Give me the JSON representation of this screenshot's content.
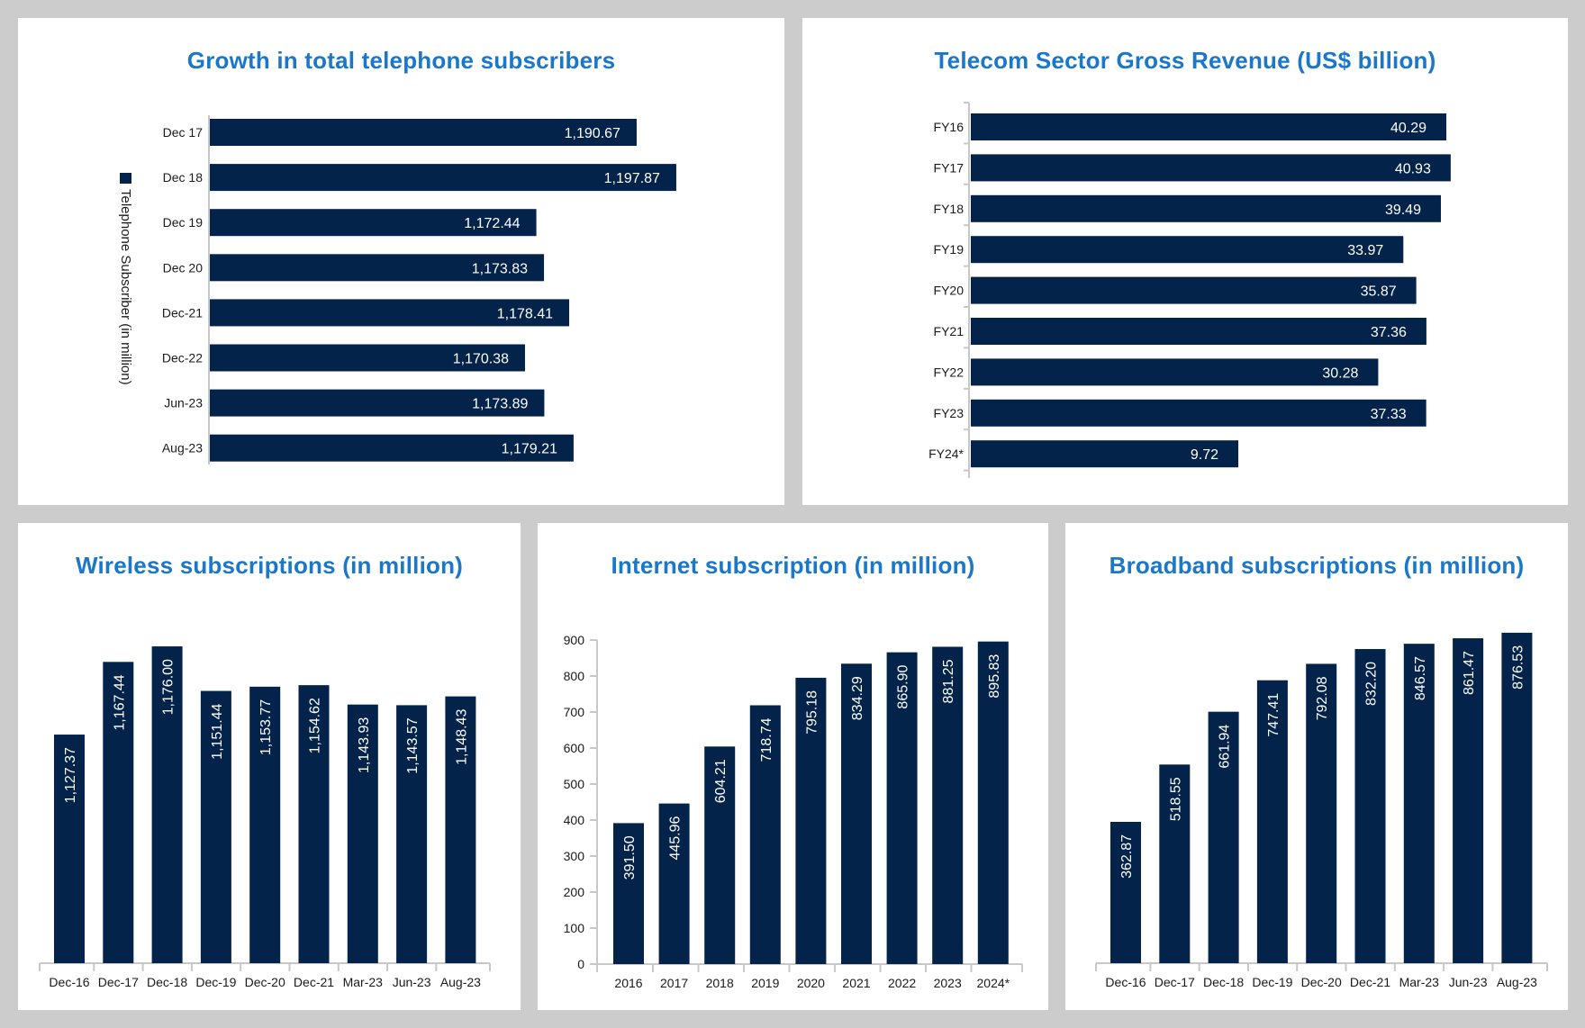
{
  "colors": {
    "bar": "#03234b",
    "title": "#1b77c9",
    "background": "#cccccc",
    "panel": "#ffffff",
    "axis": "#c8c8c8"
  },
  "chart_data": [
    {
      "id": "telephone",
      "type": "bar",
      "orientation": "horizontal",
      "title": "Growth in total telephone subscribers",
      "legend": {
        "label": "Telephone Subscriber (in million)",
        "placement": "left, rotated vertical"
      },
      "categories": [
        "Dec 17",
        "Dec 18",
        "Dec 19",
        "Dec 20",
        "Dec-21",
        "Dec-22",
        "Jun-23",
        "Aug-23"
      ],
      "values": [
        1190.67,
        1197.87,
        1172.44,
        1173.83,
        1178.41,
        1170.38,
        1173.89,
        1179.21
      ],
      "value_labels": [
        "1,190.67",
        "1,197.87",
        "1,172.44",
        "1,173.83",
        "1,178.41",
        "1,170.38",
        "1,173.89",
        "1,179.21"
      ],
      "xlabel": "",
      "ylabel": "",
      "grid": false
    },
    {
      "id": "revenue",
      "type": "bar",
      "orientation": "horizontal",
      "title": "Telecom Sector Gross Revenue (US$ billion)",
      "categories": [
        "FY16",
        "FY17",
        "FY18",
        "FY19",
        "FY20",
        "FY21",
        "FY22",
        "FY23",
        "FY24*"
      ],
      "values": [
        40.29,
        40.93,
        39.49,
        33.97,
        35.87,
        37.36,
        30.28,
        37.33,
        9.72
      ],
      "value_labels": [
        "40.29",
        "40.93",
        "39.49",
        "33.97",
        "35.87",
        "37.36",
        "30.28",
        "37.33",
        "9.72"
      ],
      "xlabel": "",
      "ylabel": "",
      "grid": false
    },
    {
      "id": "wireless",
      "type": "bar",
      "orientation": "vertical",
      "title": "Wireless subscriptions (in million)",
      "categories": [
        "Dec-16",
        "Dec-17",
        "Dec-18",
        "Dec-19",
        "Dec-20",
        "Dec-21",
        "Mar-23",
        "Jun-23",
        "Aug-23"
      ],
      "values": [
        1127.37,
        1167.44,
        1176.0,
        1151.44,
        1153.77,
        1154.62,
        1143.93,
        1143.57,
        1148.43
      ],
      "value_labels": [
        "1,127.37",
        "1,167.44",
        "1,176.00",
        "1,151.44",
        "1,153.77",
        "1,154.62",
        "1,143.93",
        "1,143.57",
        "1,148.43"
      ],
      "xlabel": "",
      "ylabel": "",
      "grid": false
    },
    {
      "id": "internet",
      "type": "bar",
      "orientation": "vertical",
      "title": "Internet subscription (in million)",
      "categories": [
        "2016",
        "2017",
        "2018",
        "2019",
        "2020",
        "2021",
        "2022",
        "2023",
        "2024*"
      ],
      "values": [
        391.5,
        445.96,
        604.21,
        718.74,
        795.18,
        834.29,
        865.9,
        881.25,
        895.83
      ],
      "value_labels": [
        "391.50",
        "445.96",
        "604.21",
        "718.74",
        "795.18",
        "834.29",
        "865.90",
        "881.25",
        "895.83"
      ],
      "yticks": [
        "0",
        "100",
        "200",
        "300",
        "400",
        "500",
        "600",
        "700",
        "800",
        "900"
      ],
      "ylim": [
        0,
        900
      ],
      "xlabel": "",
      "ylabel": "",
      "grid": false
    },
    {
      "id": "broadband",
      "type": "bar",
      "orientation": "vertical",
      "title": "Broadband subscriptions (in million)",
      "categories": [
        "Dec-16",
        "Dec-17",
        "Dec-18",
        "Dec-19",
        "Dec-20",
        "Dec-21",
        "Mar-23",
        "Jun-23",
        "Aug-23"
      ],
      "values": [
        362.87,
        518.55,
        661.94,
        747.41,
        792.08,
        832.2,
        846.57,
        861.47,
        876.53
      ],
      "value_labels": [
        "362.87",
        "518.55",
        "661.94",
        "747.41",
        "792.08",
        "832.20",
        "846.57",
        "861.47",
        "876.53"
      ],
      "xlabel": "",
      "ylabel": "",
      "grid": false
    }
  ]
}
